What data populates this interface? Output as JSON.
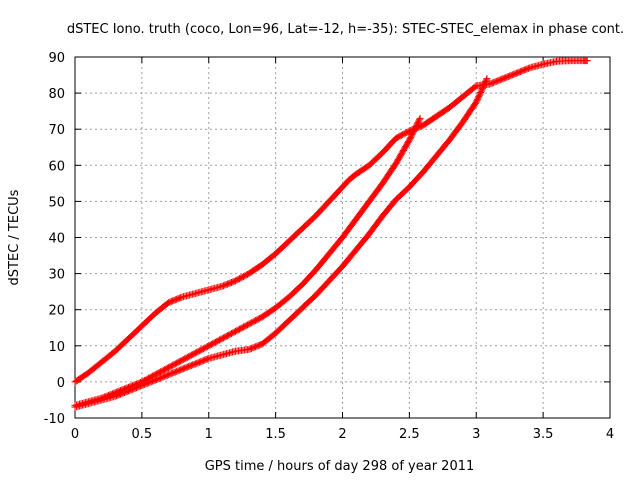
{
  "chart_data": {
    "type": "scatter",
    "title": "dSTEC Iono. truth (coco, Lon=96, Lat=-12, h=-35): STEC-STEC_elemax in phase cont.",
    "xlabel": "GPS time / hours of day 298 of year 2011",
    "ylabel": "dSTEC  / TECUs",
    "xlim": [
      0,
      4
    ],
    "ylim": [
      -10,
      90
    ],
    "xticks": [
      "0",
      "0.5",
      "1",
      "1.5",
      "2",
      "2.5",
      "3",
      "3.5",
      "4"
    ],
    "yticks": [
      "-10",
      "0",
      "10",
      "20",
      "30",
      "40",
      "50",
      "60",
      "70",
      "80",
      "90"
    ],
    "grid": true,
    "legend": "none",
    "marker": "plus",
    "color": "#ff0000",
    "series": [
      {
        "x": [
          0.0,
          0.1,
          0.2,
          0.3,
          0.4,
          0.5,
          0.6,
          0.7,
          0.8,
          0.9,
          1.0,
          1.1,
          1.2,
          1.3,
          1.4,
          1.5,
          1.6,
          1.7,
          1.8,
          1.9,
          2.0,
          2.05,
          2.1,
          2.2,
          2.3,
          2.4,
          2.5,
          2.6,
          2.7,
          2.8,
          2.9,
          3.0,
          3.1,
          3.2,
          3.3,
          3.4,
          3.5,
          3.6,
          3.7,
          3.8,
          3.83
        ],
        "y": [
          0.0,
          2.5,
          5.5,
          8.5,
          12.0,
          15.5,
          19.0,
          22.0,
          23.5,
          24.5,
          25.5,
          26.5,
          28.0,
          30.0,
          32.5,
          35.5,
          39.0,
          42.5,
          46.0,
          50.0,
          54.0,
          56.0,
          57.5,
          60.0,
          63.5,
          67.5,
          69.5,
          71.0,
          73.5,
          76.0,
          79.0,
          82.0,
          82.5,
          84.0,
          85.5,
          87.0,
          88.0,
          88.8,
          89.0,
          89.0,
          89.0
        ]
      },
      {
        "x": [
          0.0,
          0.1,
          0.2,
          0.3,
          0.4,
          0.5,
          0.6,
          0.7,
          0.8,
          0.9,
          1.0,
          1.1,
          1.2,
          1.3,
          1.4,
          1.5,
          1.6,
          1.7,
          1.8,
          1.9,
          2.0,
          2.1,
          2.2,
          2.3,
          2.4,
          2.5,
          2.58
        ],
        "y": [
          -6.5,
          -5.5,
          -4.5,
          -3.0,
          -1.5,
          0.0,
          2.0,
          4.0,
          6.0,
          8.0,
          10.0,
          12.0,
          14.0,
          16.0,
          18.0,
          20.5,
          23.5,
          27.0,
          31.0,
          35.5,
          40.0,
          45.0,
          50.0,
          55.0,
          60.5,
          67.0,
          73.0
        ]
      },
      {
        "x": [
          0.0,
          0.1,
          0.2,
          0.3,
          0.4,
          0.5,
          0.6,
          0.7,
          0.8,
          0.9,
          1.0,
          1.1,
          1.2,
          1.3,
          1.4,
          1.5,
          1.6,
          1.7,
          1.8,
          1.9,
          2.0,
          2.1,
          2.2,
          2.3,
          2.4,
          2.5,
          2.6,
          2.7,
          2.8,
          2.9,
          3.0,
          3.08
        ],
        "y": [
          -7.0,
          -6.0,
          -5.0,
          -4.0,
          -2.5,
          -1.0,
          0.5,
          2.0,
          3.5,
          5.0,
          6.5,
          7.5,
          8.5,
          9.0,
          10.5,
          13.5,
          17.0,
          20.5,
          24.0,
          28.0,
          32.0,
          36.5,
          41.0,
          46.0,
          50.5,
          54.0,
          58.0,
          62.5,
          67.0,
          72.0,
          77.5,
          84.0
        ]
      }
    ]
  }
}
